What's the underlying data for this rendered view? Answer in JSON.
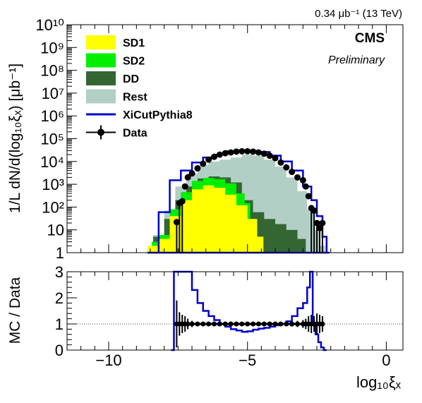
{
  "lumi_text": "0.34 μb⁻¹ (13 TeV)",
  "experiment": "CMS",
  "status_label": "Preliminary",
  "chart_data": [
    {
      "type": "histogram",
      "panel": "main",
      "ylabel": "1/L dN/d(log₁₀ξₓ) [μb⁻¹]",
      "yscale": "log",
      "ylim": [
        1,
        10000000000
      ],
      "xlim": [
        -11.5,
        0.6
      ],
      "y_tick_labels": [
        "1",
        "10",
        "10²",
        "10³",
        "10⁴",
        "10⁵",
        "10⁶",
        "10⁷",
        "10⁸",
        "10⁹",
        "10¹⁰"
      ],
      "legend_placement": "top-left",
      "legend": [
        {
          "name": "SD1",
          "color": "#ffff00",
          "style": "fill"
        },
        {
          "name": "SD2",
          "color": "#00ee00",
          "style": "fill"
        },
        {
          "name": "DD",
          "color": "#336633",
          "style": "fill"
        },
        {
          "name": "Rest",
          "color": "#b2cfc6",
          "style": "fill"
        },
        {
          "name": "XiCutPythia8",
          "color": "#0000cc",
          "style": "line"
        },
        {
          "name": "Data",
          "color": "#000000",
          "style": "marker"
        }
      ],
      "stack": [
        {
          "name": "SD1",
          "color": "#ffff00",
          "x": [
            -8.4,
            -8.0,
            -7.6,
            -7.2,
            -6.8,
            -6.4,
            -6.0,
            -5.6,
            -5.2,
            -4.8,
            -4.5,
            -4.35
          ],
          "y": [
            2,
            4,
            40,
            200,
            600,
            900,
            700,
            350,
            120,
            30,
            5,
            1
          ]
        },
        {
          "name": "SD2",
          "color": "#00ee00",
          "x": [
            -8.3,
            -8.0,
            -7.6,
            -7.2,
            -6.8,
            -6.4,
            -6.0,
            -5.6,
            -5.2,
            -5.0,
            -4.8,
            -4.6,
            -4.5
          ],
          "y": [
            3,
            6,
            80,
            450,
            1400,
            1900,
            1700,
            1100,
            400,
            150,
            30,
            5,
            1
          ]
        },
        {
          "name": "DD",
          "color": "#336633",
          "x": [
            -8.2,
            -7.8,
            -7.4,
            -7.0,
            -6.6,
            -6.2,
            -5.8,
            -5.4,
            -5.0,
            -4.6,
            -4.2,
            -3.8,
            -3.4,
            -3.0,
            -2.8
          ],
          "y": [
            5,
            30,
            200,
            800,
            1800,
            2200,
            2000,
            1200,
            200,
            60,
            30,
            18,
            10,
            4,
            1
          ]
        },
        {
          "name": "Rest",
          "color": "#b2cfc6",
          "x": [
            -8.2,
            -7.8,
            -7.4,
            -7.0,
            -6.6,
            -6.2,
            -5.8,
            -5.4,
            -5.0,
            -4.6,
            -4.2,
            -3.8,
            -3.4,
            -3.0,
            -2.7,
            -2.5,
            -2.3
          ],
          "y": [
            6,
            70,
            800,
            3000,
            7000,
            10000,
            12000,
            15000,
            20000,
            18000,
            12000,
            6000,
            2000,
            500,
            80,
            10,
            2
          ]
        }
      ],
      "series": [
        {
          "name": "XiCutPythia8",
          "color": "#0000cc",
          "x": [
            -8.4,
            -8.0,
            -7.6,
            -7.2,
            -6.8,
            -6.4,
            -6.0,
            -5.6,
            -5.2,
            -4.8,
            -4.4,
            -4.0,
            -3.6,
            -3.2,
            -2.8,
            -2.6,
            -2.4,
            -2.2,
            -2.1
          ],
          "y": [
            1,
            60,
            1500,
            4000,
            9000,
            15000,
            20000,
            28000,
            30000,
            29000,
            26000,
            18000,
            10000,
            4000,
            800,
            200,
            40,
            5,
            1
          ]
        },
        {
          "name": "Data",
          "color": "#000000",
          "x": [
            -7.55,
            -7.45,
            -7.35,
            -7.25,
            -7.15,
            -7.0,
            -6.8,
            -6.6,
            -6.4,
            -6.2,
            -6.0,
            -5.8,
            -5.6,
            -5.4,
            -5.2,
            -5.0,
            -4.8,
            -4.6,
            -4.4,
            -4.2,
            -4.0,
            -3.8,
            -3.6,
            -3.4,
            -3.2,
            -3.0,
            -2.9,
            -2.8,
            -2.7,
            -2.6,
            -2.5,
            -2.4,
            -2.3
          ],
          "y": [
            22,
            150,
            180,
            800,
            2000,
            3000,
            5000,
            8000,
            12000,
            16000,
            20000,
            23000,
            25000,
            27000,
            28000,
            28000,
            27000,
            25000,
            22000,
            18000,
            14000,
            9000,
            5500,
            3500,
            2000,
            1500,
            800,
            300,
            90,
            70,
            20,
            12,
            20
          ]
        }
      ]
    },
    {
      "type": "histogram",
      "panel": "ratio",
      "xlabel": "log₁₀ξₓ",
      "ylabel": "MC / Data",
      "ylim": [
        0,
        3
      ],
      "xlim": [
        -11.5,
        0.6
      ],
      "x_tick_labels": [
        "−10",
        "−5",
        "0"
      ],
      "y_tick_labels": [
        "0",
        "1",
        "2",
        "3"
      ],
      "reference_line": 1,
      "series": [
        {
          "name": "XiCutPythia8 / Data",
          "color": "#0000cc",
          "x": [
            -7.7,
            -7.6,
            -7.5,
            -7.4,
            -7.3,
            -7.1,
            -6.9,
            -6.7,
            -6.5,
            -6.3,
            -6.1,
            -5.9,
            -5.7,
            -5.5,
            -5.3,
            -5.1,
            -4.9,
            -4.7,
            -4.5,
            -4.3,
            -4.1,
            -3.9,
            -3.7,
            -3.5,
            -3.3,
            -3.1,
            -2.9,
            -2.8,
            -2.7,
            -2.6,
            -2.5,
            -2.4,
            -2.3,
            -2.2
          ],
          "y": [
            0,
            3,
            3,
            3,
            3,
            3,
            2.3,
            1.8,
            1.5,
            1.3,
            1.15,
            1.0,
            0.9,
            0.8,
            0.75,
            0.7,
            0.72,
            0.78,
            0.82,
            0.85,
            0.9,
            0.95,
            1.0,
            1.1,
            1.3,
            1.6,
            1.8,
            2.4,
            3,
            1.0,
            0.6,
            0.3,
            0.1,
            0
          ]
        },
        {
          "name": "Data",
          "color": "#000000",
          "x": [
            -7.55,
            -7.45,
            -7.35,
            -7.25,
            -7.15,
            -7.0,
            -6.8,
            -6.6,
            -6.4,
            -6.2,
            -6.0,
            -5.8,
            -5.6,
            -5.4,
            -5.2,
            -5.0,
            -4.8,
            -4.6,
            -4.4,
            -4.2,
            -4.0,
            -3.8,
            -3.6,
            -3.4,
            -3.2,
            -3.0,
            -2.9,
            -2.8,
            -2.7,
            -2.6,
            -2.5,
            -2.4,
            -2.3
          ],
          "y": [
            1,
            1,
            1,
            1,
            1,
            1,
            1,
            1,
            1,
            1,
            1,
            1,
            1,
            1,
            1,
            1,
            1,
            1,
            1,
            1,
            1,
            1,
            1,
            1,
            1,
            1,
            1,
            1,
            1,
            1,
            1,
            1,
            1
          ],
          "err": [
            0.9,
            0.45,
            0.35,
            0.3,
            0.2,
            0.12,
            0.08,
            0.06,
            0.05,
            0.04,
            0.03,
            0.03,
            0.03,
            0.03,
            0.03,
            0.03,
            0.03,
            0.03,
            0.03,
            0.04,
            0.05,
            0.06,
            0.08,
            0.1,
            0.12,
            0.15,
            0.2,
            0.3,
            0.35,
            0.3,
            0.4,
            0.35,
            0.3
          ]
        }
      ]
    }
  ]
}
